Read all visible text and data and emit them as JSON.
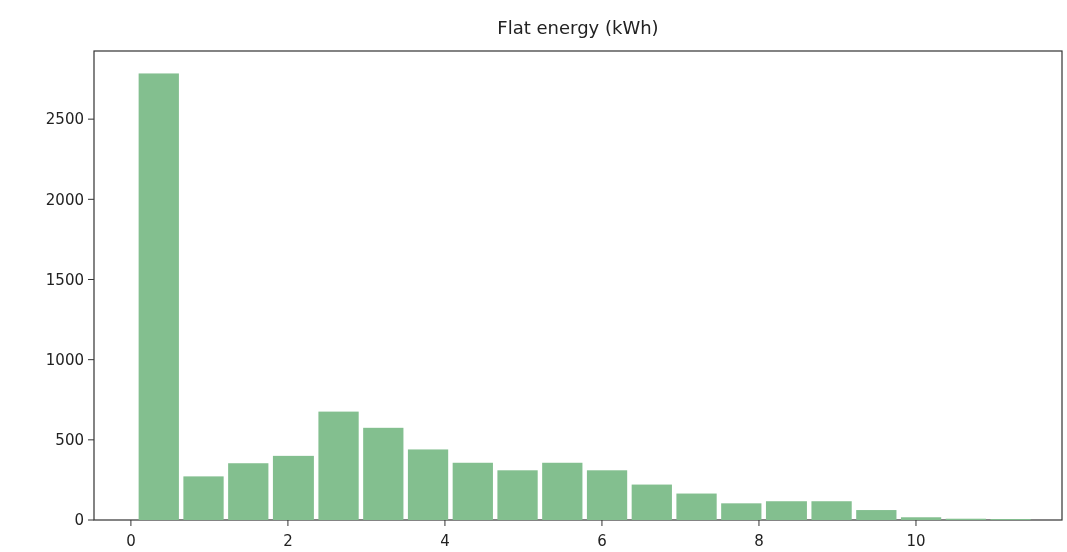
{
  "chart_data": {
    "type": "histogram",
    "title": "Flat energy (kWh)",
    "bins": [
      0.07,
      0.64,
      1.21,
      1.78,
      2.36,
      2.93,
      3.5,
      4.07,
      4.64,
      5.21,
      5.78,
      6.35,
      6.92,
      7.49,
      8.06,
      8.64,
      9.21,
      9.78,
      10.35,
      10.92,
      11.49
    ],
    "values": [
      2785,
      272,
      354,
      400,
      676,
      575,
      440,
      357,
      310,
      357,
      310,
      221,
      165,
      104,
      117,
      117,
      62,
      17,
      8,
      6
    ],
    "color": "#83bf8f",
    "xlim": [
      -0.47,
      11.86
    ],
    "xticks": [
      0,
      2,
      4,
      6,
      8,
      10
    ],
    "ylim": [
      0,
      2925
    ],
    "yticks": [
      0,
      500,
      1000,
      1500,
      2000,
      2500
    ],
    "grid": false
  }
}
